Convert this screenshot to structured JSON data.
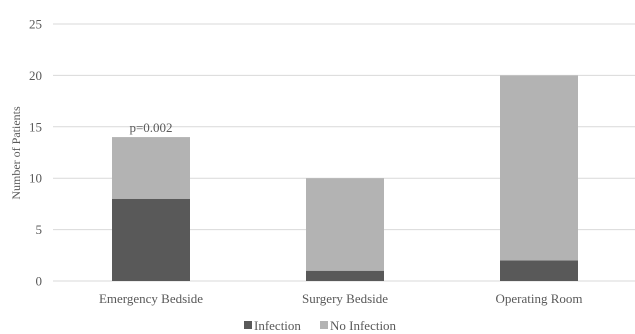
{
  "chart_data": {
    "type": "bar",
    "stacked": true,
    "categories": [
      "Emergency Bedside",
      "Surgery Bedside",
      "Operating Room"
    ],
    "series": [
      {
        "name": "Infection",
        "values": [
          8,
          1,
          2
        ],
        "color": "#595959"
      },
      {
        "name": "No Infection",
        "values": [
          6,
          9,
          18
        ],
        "color": "#b3b3b3"
      }
    ],
    "title": "",
    "xlabel": "",
    "ylabel": "Number of Patients",
    "ylim": [
      0,
      25
    ],
    "yticks": [
      0,
      5,
      10,
      15,
      20,
      25
    ],
    "grid": true,
    "gridline_color": "#d9d9d9",
    "legend_position": "bottom",
    "annotations": [
      {
        "category_index": 0,
        "text": "p=0.002"
      }
    ]
  }
}
